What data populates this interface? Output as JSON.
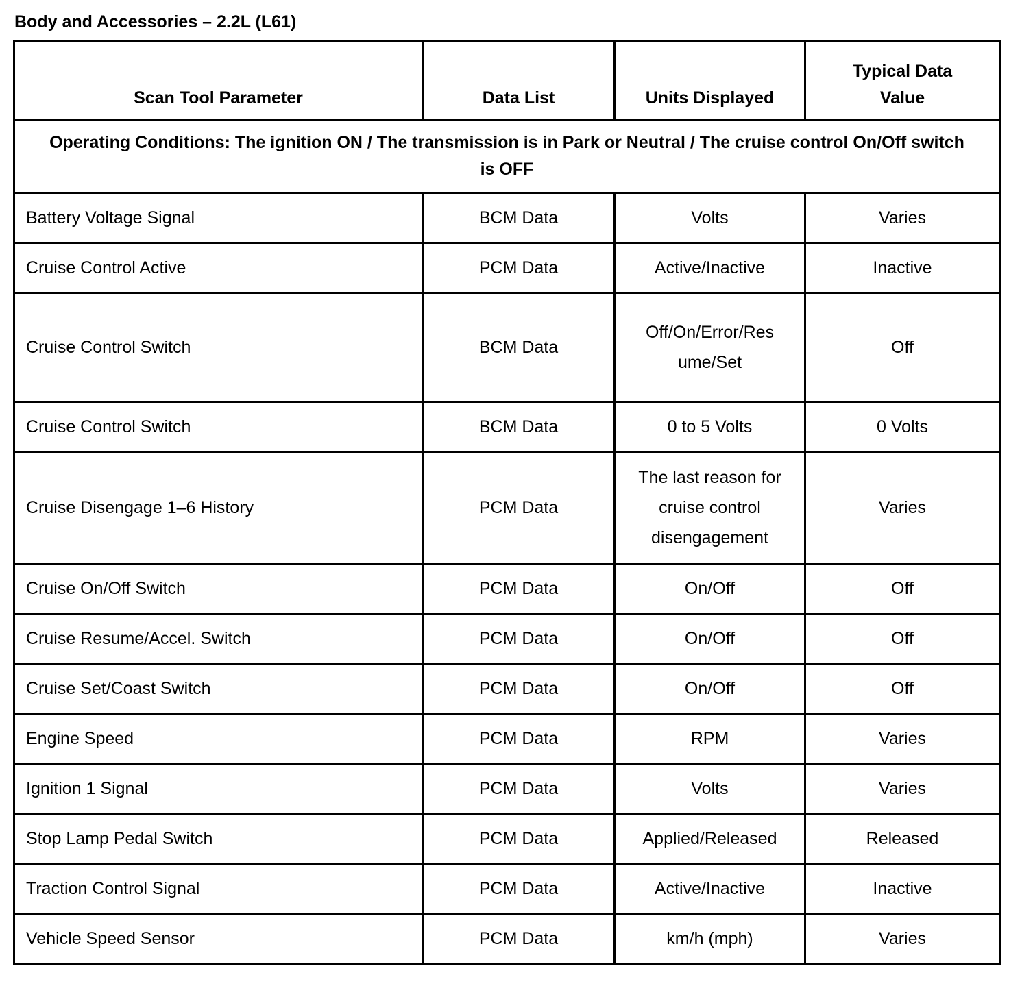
{
  "title": "Body and Accessories – 2.2L (L61)",
  "columns": [
    "Scan Tool Parameter",
    "Data List",
    "Units Displayed",
    "Typical Data Value"
  ],
  "operating_conditions": "Operating Conditions: The ignition ON / The transmission is in Park or Neutral / The cruise control On/Off switch is OFF",
  "rows": [
    {
      "parameter": "Battery Voltage Signal",
      "data_list": "BCM Data",
      "units": "Volts",
      "typical": "Varies"
    },
    {
      "parameter": "Cruise Control Active",
      "data_list": "PCM Data",
      "units": "Active/Inactive",
      "typical": "Inactive"
    },
    {
      "parameter": "Cruise Control Switch",
      "data_list": "BCM Data",
      "units": "Off/On/Error/Resume/Set",
      "typical": "Off"
    },
    {
      "parameter": "Cruise Control Switch",
      "data_list": "BCM Data",
      "units": "0 to 5 Volts",
      "typical": "0 Volts"
    },
    {
      "parameter": "Cruise Disengage 1–6 History",
      "data_list": "PCM Data",
      "units": "The last reason for cruise control disengagement",
      "typical": "Varies"
    },
    {
      "parameter": "Cruise On/Off Switch",
      "data_list": "PCM Data",
      "units": "On/Off",
      "typical": "Off"
    },
    {
      "parameter": "Cruise Resume/Accel. Switch",
      "data_list": "PCM Data",
      "units": "On/Off",
      "typical": "Off"
    },
    {
      "parameter": "Cruise Set/Coast Switch",
      "data_list": "PCM Data",
      "units": "On/Off",
      "typical": "Off"
    },
    {
      "parameter": "Engine Speed",
      "data_list": "PCM Data",
      "units": "RPM",
      "typical": "Varies"
    },
    {
      "parameter": "Ignition 1 Signal",
      "data_list": "PCM Data",
      "units": "Volts",
      "typical": "Varies"
    },
    {
      "parameter": "Stop Lamp Pedal Switch",
      "data_list": "PCM Data",
      "units": "Applied/Released",
      "typical": "Released"
    },
    {
      "parameter": "Traction Control Signal",
      "data_list": "PCM Data",
      "units": "Active/Inactive",
      "typical": "Inactive"
    },
    {
      "parameter": "Vehicle Speed Sensor",
      "data_list": "PCM Data",
      "units": "km/h (mph)",
      "typical": "Varies"
    }
  ]
}
